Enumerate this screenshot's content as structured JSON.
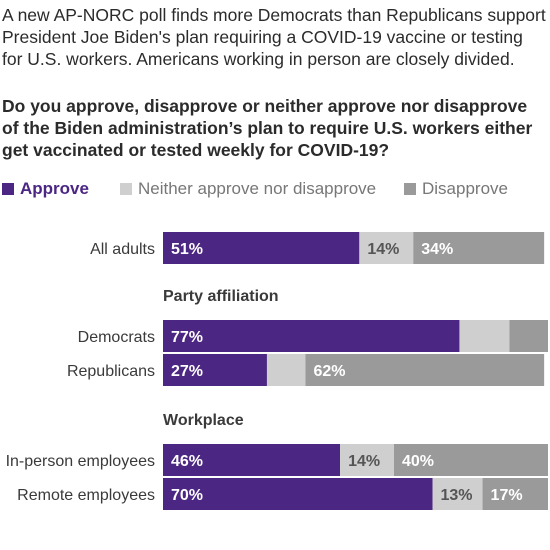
{
  "intro": "A new AP-NORC poll finds more Democrats than Republicans support President Joe Biden's plan requiring a COVID-19 vaccine or testing for U.S. workers. Americans working in person are closely divided.",
  "question": "Do you approve, disapprove or neither approve nor disapprove of the Biden administration’s plan to require U.S. workers either get vaccinated or tested weekly for COVID-19?",
  "legend": {
    "approve": "Approve",
    "neither": "Neither approve nor disapprove",
    "disapprove": "Disapprove"
  },
  "colors": {
    "approve": "#4b2683",
    "neither": "#cfcfcf",
    "disapprove": "#9a9a9a",
    "text_on_approve": "#ffffff",
    "text_on_neither": "#555555",
    "text_on_disapprove": "#ffffff"
  },
  "chart_data": {
    "type": "bar",
    "orientation": "horizontal",
    "stacked": true,
    "xlim": [
      0,
      100
    ],
    "unit": "%",
    "groups": [
      {
        "label": "",
        "categories": [
          "All adults"
        ]
      },
      {
        "label": "Party affiliation",
        "categories": [
          "Democrats",
          "Republicans"
        ]
      },
      {
        "label": "Workplace",
        "categories": [
          "In-person employees",
          "Remote employees"
        ]
      }
    ],
    "categories": [
      "All adults",
      "Democrats",
      "Republicans",
      "In-person employees",
      "Remote employees"
    ],
    "series": [
      {
        "name": "Approve",
        "values": [
          51,
          77,
          27,
          46,
          70
        ]
      },
      {
        "name": "Neither approve nor disapprove",
        "values": [
          14,
          13,
          10,
          14,
          13
        ]
      },
      {
        "name": "Disapprove",
        "values": [
          34,
          10,
          62,
          40,
          17
        ]
      }
    ],
    "labels": [
      [
        "51%",
        "14%",
        "34%"
      ],
      [
        "77%",
        "",
        ""
      ],
      [
        "27%",
        "",
        "62%"
      ],
      [
        "46%",
        "14%",
        "40%"
      ],
      [
        "70%",
        "13%",
        "17%"
      ]
    ]
  }
}
